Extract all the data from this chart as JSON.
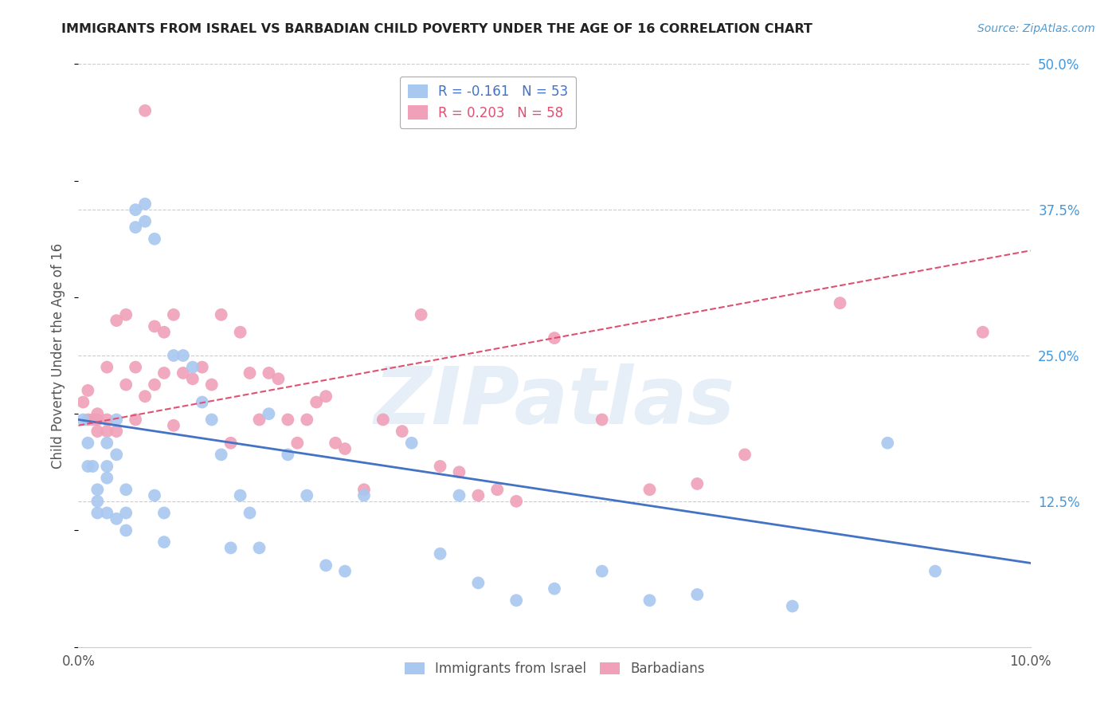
{
  "title": "IMMIGRANTS FROM ISRAEL VS BARBADIAN CHILD POVERTY UNDER THE AGE OF 16 CORRELATION CHART",
  "source": "Source: ZipAtlas.com",
  "ylabel": "Child Poverty Under the Age of 16",
  "xlim": [
    0.0,
    0.1
  ],
  "ylim": [
    0.0,
    0.5
  ],
  "xticks": [
    0.0,
    0.1
  ],
  "xticklabels": [
    "0.0%",
    "10.0%"
  ],
  "yticks_right": [
    0.0,
    0.125,
    0.25,
    0.375,
    0.5
  ],
  "yticklabels_right": [
    "",
    "12.5%",
    "25.0%",
    "37.5%",
    "50.0%"
  ],
  "series1_label": "Immigrants from Israel",
  "series2_label": "Barbadians",
  "series1_color": "#a8c8f0",
  "series2_color": "#f0a0b8",
  "series1_line_color": "#4472c4",
  "series2_line_color": "#e05070",
  "watermark_text": "ZIPatlas",
  "background_color": "#ffffff",
  "grid_color": "#cccccc",
  "title_color": "#222222",
  "axis_label_color": "#555555",
  "right_tick_color": "#4499dd",
  "legend_r1": "R = -0.161",
  "legend_n1": "N = 53",
  "legend_r2": "R = 0.203",
  "legend_n2": "N = 58",
  "series1_x": [
    0.0005,
    0.001,
    0.001,
    0.0015,
    0.002,
    0.002,
    0.002,
    0.003,
    0.003,
    0.003,
    0.003,
    0.004,
    0.004,
    0.004,
    0.005,
    0.005,
    0.005,
    0.006,
    0.006,
    0.007,
    0.007,
    0.008,
    0.008,
    0.009,
    0.009,
    0.01,
    0.011,
    0.012,
    0.013,
    0.014,
    0.015,
    0.016,
    0.017,
    0.018,
    0.019,
    0.02,
    0.022,
    0.024,
    0.026,
    0.028,
    0.03,
    0.035,
    0.038,
    0.04,
    0.042,
    0.046,
    0.05,
    0.055,
    0.06,
    0.065,
    0.075,
    0.085,
    0.09
  ],
  "series1_y": [
    0.195,
    0.175,
    0.155,
    0.155,
    0.135,
    0.115,
    0.125,
    0.175,
    0.155,
    0.145,
    0.115,
    0.195,
    0.165,
    0.11,
    0.135,
    0.115,
    0.1,
    0.375,
    0.36,
    0.38,
    0.365,
    0.35,
    0.13,
    0.115,
    0.09,
    0.25,
    0.25,
    0.24,
    0.21,
    0.195,
    0.165,
    0.085,
    0.13,
    0.115,
    0.085,
    0.2,
    0.165,
    0.13,
    0.07,
    0.065,
    0.13,
    0.175,
    0.08,
    0.13,
    0.055,
    0.04,
    0.05,
    0.065,
    0.04,
    0.045,
    0.035,
    0.175,
    0.065
  ],
  "series2_x": [
    0.0005,
    0.001,
    0.001,
    0.0015,
    0.002,
    0.002,
    0.002,
    0.003,
    0.003,
    0.003,
    0.004,
    0.004,
    0.005,
    0.005,
    0.006,
    0.006,
    0.007,
    0.007,
    0.008,
    0.008,
    0.009,
    0.009,
    0.01,
    0.01,
    0.011,
    0.012,
    0.013,
    0.014,
    0.015,
    0.016,
    0.017,
    0.018,
    0.019,
    0.02,
    0.021,
    0.022,
    0.023,
    0.024,
    0.025,
    0.026,
    0.027,
    0.028,
    0.03,
    0.032,
    0.034,
    0.036,
    0.038,
    0.04,
    0.042,
    0.044,
    0.046,
    0.05,
    0.055,
    0.06,
    0.065,
    0.07,
    0.08,
    0.095
  ],
  "series2_y": [
    0.21,
    0.195,
    0.22,
    0.195,
    0.195,
    0.2,
    0.185,
    0.24,
    0.195,
    0.185,
    0.28,
    0.185,
    0.285,
    0.225,
    0.24,
    0.195,
    0.46,
    0.215,
    0.275,
    0.225,
    0.27,
    0.235,
    0.285,
    0.19,
    0.235,
    0.23,
    0.24,
    0.225,
    0.285,
    0.175,
    0.27,
    0.235,
    0.195,
    0.235,
    0.23,
    0.195,
    0.175,
    0.195,
    0.21,
    0.215,
    0.175,
    0.17,
    0.135,
    0.195,
    0.185,
    0.285,
    0.155,
    0.15,
    0.13,
    0.135,
    0.125,
    0.265,
    0.195,
    0.135,
    0.14,
    0.165,
    0.295,
    0.27
  ]
}
